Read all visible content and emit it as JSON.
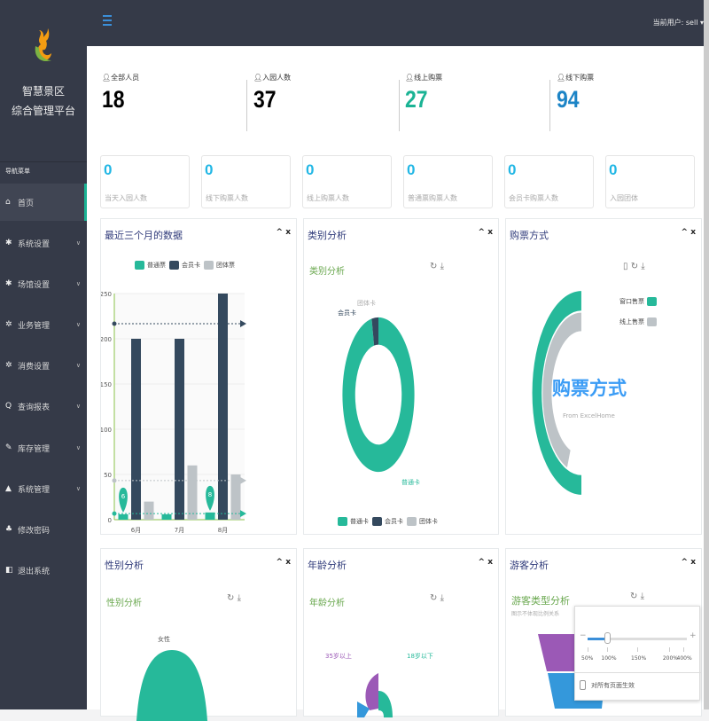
{
  "app": {
    "title_line1": "智慧景区",
    "title_line2": "综合管理平台",
    "nav_heading": "导航菜单",
    "current_user_label": "当前用户:",
    "current_user": "sell"
  },
  "sidebar": {
    "items": [
      {
        "label": "首页",
        "icon": "home-icon",
        "active": true,
        "chev": false
      },
      {
        "label": "系统设置",
        "icon": "gear-icon",
        "chev": true
      },
      {
        "label": "场馆设置",
        "icon": "gear-icon",
        "chev": true
      },
      {
        "label": "业务管理",
        "icon": "gears-icon",
        "chev": true
      },
      {
        "label": "消费设置",
        "icon": "gears-icon",
        "chev": true
      },
      {
        "label": "查询报表",
        "icon": "search-icon",
        "chev": true
      },
      {
        "label": "库存管理",
        "icon": "edit-icon",
        "chev": true
      },
      {
        "label": "系统管理",
        "icon": "warning-icon",
        "chev": true
      },
      {
        "label": "修改密码",
        "icon": "puzzle-icon",
        "chev": false
      },
      {
        "label": "退出系统",
        "icon": "logout-icon",
        "chev": false
      }
    ]
  },
  "stats": [
    {
      "label": "全部人员",
      "value": "18",
      "color": "#000000"
    },
    {
      "label": "入园人数",
      "value": "37",
      "color": "#000000"
    },
    {
      "label": "线上购票",
      "value": "27",
      "color": "#1ab394"
    },
    {
      "label": "线下购票",
      "value": "94",
      "color": "#1c84c6"
    }
  ],
  "mini_stats": [
    {
      "value": "0",
      "label": "当天入园人数"
    },
    {
      "value": "0",
      "label": "线下购票人数"
    },
    {
      "value": "0",
      "label": "线上购票人数"
    },
    {
      "value": "0",
      "label": "普通票购票人数"
    },
    {
      "value": "0",
      "label": "会员卡购票人数"
    },
    {
      "value": "0",
      "label": "入园团体"
    }
  ],
  "panels": {
    "recent": {
      "title": "最近三个月的数据"
    },
    "category": {
      "title": "类别分析",
      "subtitle": "类别分析"
    },
    "purchase": {
      "title": "购票方式",
      "center_title": "购票方式",
      "center_sub": "From ExcelHome"
    },
    "gender": {
      "title": "性别分析",
      "subtitle": "性别分析"
    },
    "age": {
      "title": "年龄分析",
      "subtitle": "年龄分析"
    },
    "visitor": {
      "title": "游客分析",
      "subtitle": "游客类型分析",
      "note": "图示不体现比例关系"
    }
  },
  "tools": {
    "collapse": "^",
    "close": "x"
  },
  "chart_data": [
    {
      "type": "bar",
      "title": "最近三个月的数据",
      "categories": [
        "6月",
        "7月",
        "8月"
      ],
      "ylim": [
        0,
        250
      ],
      "yticks": [
        "0",
        "50",
        "100",
        "150",
        "200",
        "250"
      ],
      "series": [
        {
          "name": "普通票",
          "values": [
            6,
            6,
            8
          ],
          "color": "#26b99a"
        },
        {
          "name": "会员卡",
          "values": [
            200,
            200,
            250
          ],
          "color": "#34495e"
        },
        {
          "name": "团体票",
          "values": [
            20,
            60,
            50
          ],
          "color": "#bdc3c7"
        }
      ],
      "mark_points": [
        "6",
        "8"
      ],
      "avg_lines": [
        6.7,
        216.7,
        43.3
      ]
    },
    {
      "type": "pie",
      "title": "类别分析",
      "labels": [
        "普通卡",
        "会员卡",
        "团体卡"
      ],
      "values": [
        97,
        3,
        0
      ],
      "colors": [
        "#26b99a",
        "#34495e",
        "#bdc3c7"
      ]
    },
    {
      "type": "pie",
      "title": "购票方式",
      "labels": [
        "窗口售票",
        "线上售票"
      ],
      "values": [
        50,
        45
      ],
      "colors": [
        "#26b99a",
        "#bdc3c7"
      ]
    },
    {
      "type": "pie",
      "title": "性别分析",
      "labels": [
        "女性"
      ],
      "values": [
        1
      ],
      "colors": [
        "#26b99a"
      ]
    },
    {
      "type": "pie",
      "title": "年龄分析",
      "labels": [
        "35岁以上",
        "18岁以下"
      ],
      "colors": [
        "#9b59b6",
        "#26b99a"
      ]
    },
    {
      "type": "funnel",
      "title": "游客类型分析",
      "colors": [
        "#9b59b6",
        "#3498db"
      ]
    }
  ],
  "zoom_popup": {
    "ticks": [
      "50%",
      "100%",
      "150%",
      "200%",
      "400%"
    ],
    "value_percent": 100,
    "minus": "−",
    "plus": "+",
    "apply_all": "对所有页面生效"
  }
}
